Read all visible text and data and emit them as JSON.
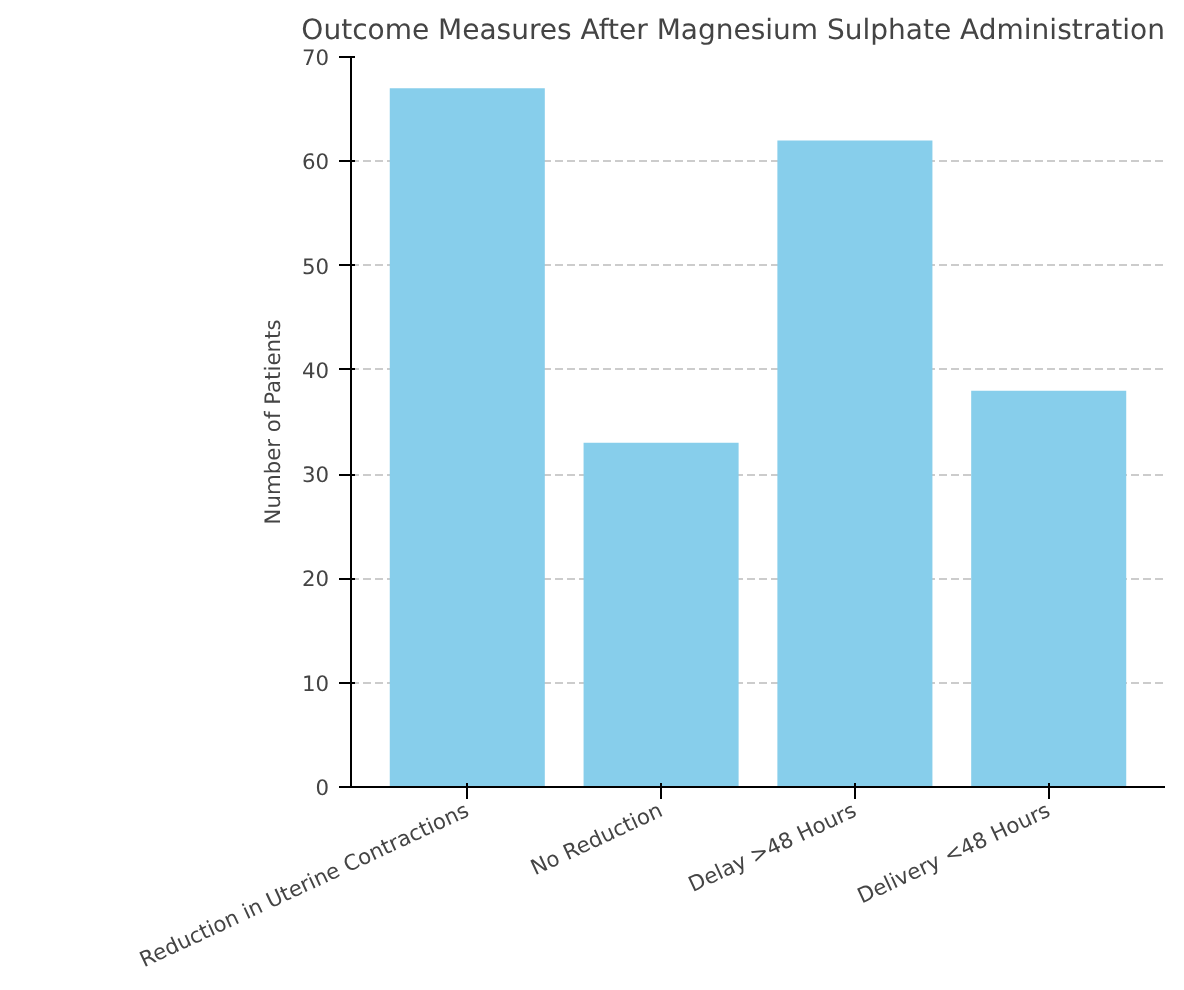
{
  "chart_data": {
    "type": "bar",
    "title": "Outcome Measures After Magnesium Sulphate Administration",
    "ylabel": "Number of Patients",
    "categories": [
      "Reduction in Uterine Contractions",
      "No Reduction",
      "Delay >48 Hours",
      "Delivery <48 Hours"
    ],
    "values": [
      67,
      33,
      62,
      38
    ],
    "color": "#87ceeb",
    "ylim": [
      0,
      70
    ],
    "yticks": [
      0,
      10,
      20,
      30,
      40,
      50,
      60,
      70
    ],
    "grid": "y"
  }
}
